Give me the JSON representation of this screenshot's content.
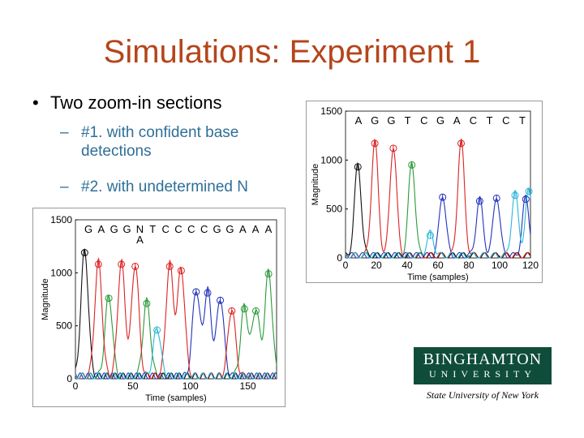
{
  "slide": {
    "title": "Simulations: Experiment 1",
    "bullet": "Two zoom-in sections",
    "bullet_symbol": "•",
    "sub_dash": "–",
    "sub1_line1": "#1. with confident base",
    "sub1_line2": "detections",
    "sub2": "#2. with undetermined N"
  },
  "logo": {
    "line1": "BINGHAMTON",
    "line2": "UNIVERSITY",
    "line3": "State University of New York",
    "bg_color": "#0f4d3a"
  },
  "chart_data": [
    {
      "type": "line",
      "xlabel": "Time (samples)",
      "ylabel": "Magnitude",
      "xlim": [
        0,
        175
      ],
      "ylim": [
        0,
        1500
      ],
      "xticks": [
        0,
        50,
        100,
        150
      ],
      "yticks": [
        0,
        500,
        1000,
        1500
      ],
      "bases_row1": [
        "G",
        "A",
        "G",
        "G",
        "N",
        "T",
        "C",
        "C",
        "C",
        "C",
        "G",
        "G",
        "A",
        "A",
        "A"
      ],
      "bases_row2": [
        "",
        "",
        "",
        "",
        "A",
        "",
        "",
        "",
        "",
        "",
        "",
        "",
        "",
        "",
        ""
      ],
      "colors": {
        "A": "#2a9a3a",
        "C": "#2233bb",
        "G": "#111111",
        "T": "#dd2222",
        "N": "#29b6d9"
      },
      "peaks": [
        {
          "x": 8,
          "y": 1190,
          "base": "G"
        },
        {
          "x": 20,
          "y": 1080,
          "base": "T"
        },
        {
          "x": 29,
          "y": 760,
          "base": "A"
        },
        {
          "x": 40,
          "y": 1080,
          "base": "T"
        },
        {
          "x": 52,
          "y": 1060,
          "base": "T"
        },
        {
          "x": 62,
          "y": 710,
          "base": "A"
        },
        {
          "x": 71,
          "y": 460,
          "base": "N"
        },
        {
          "x": 82,
          "y": 1060,
          "base": "T"
        },
        {
          "x": 92,
          "y": 1020,
          "base": "T"
        },
        {
          "x": 105,
          "y": 820,
          "base": "C"
        },
        {
          "x": 115,
          "y": 810,
          "base": "C"
        },
        {
          "x": 126,
          "y": 740,
          "base": "C"
        },
        {
          "x": 136,
          "y": 640,
          "base": "T"
        },
        {
          "x": 147,
          "y": 660,
          "base": "A"
        },
        {
          "x": 157,
          "y": 640,
          "base": "A"
        },
        {
          "x": 168,
          "y": 990,
          "base": "A"
        }
      ]
    },
    {
      "type": "line",
      "xlabel": "Time (samples)",
      "ylabel": "Magnitude",
      "xlim": [
        0,
        120
      ],
      "ylim": [
        0,
        1500
      ],
      "xticks": [
        0,
        20,
        40,
        60,
        80,
        100,
        120
      ],
      "yticks": [
        0,
        500,
        1000,
        1500
      ],
      "bases_row1": [
        "A",
        "G",
        "G",
        "T",
        "C",
        "G",
        "A",
        "C",
        "T",
        "C",
        "T"
      ],
      "peaks": [
        {
          "x": 8,
          "y": 930,
          "base": "G"
        },
        {
          "x": 19,
          "y": 1170,
          "base": "T"
        },
        {
          "x": 31,
          "y": 1120,
          "base": "T"
        },
        {
          "x": 43,
          "y": 950,
          "base": "A"
        },
        {
          "x": 55,
          "y": 230,
          "base": "N"
        },
        {
          "x": 63,
          "y": 620,
          "base": "C"
        },
        {
          "x": 75,
          "y": 1170,
          "base": "T"
        },
        {
          "x": 87,
          "y": 580,
          "base": "C"
        },
        {
          "x": 98,
          "y": 610,
          "base": "C"
        },
        {
          "x": 110,
          "y": 640,
          "base": "N"
        },
        {
          "x": 117,
          "y": 600,
          "base": "C"
        },
        {
          "x": 119,
          "y": 680,
          "base": "N"
        }
      ]
    }
  ]
}
